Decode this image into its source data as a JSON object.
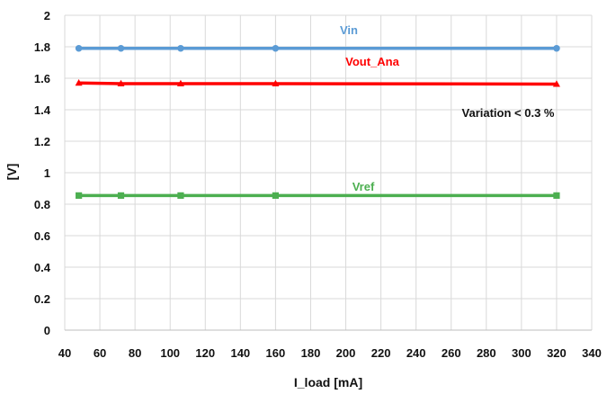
{
  "chart_data": {
    "type": "line",
    "xlabel": "I_load [mA]",
    "ylabel": "[V]",
    "xlim": [
      40,
      340
    ],
    "ylim": [
      0,
      2
    ],
    "x_ticks": [
      "40",
      "60",
      "80",
      "100",
      "120",
      "140",
      "160",
      "180",
      "200",
      "220",
      "240",
      "260",
      "280",
      "300",
      "320",
      "340"
    ],
    "y_ticks": [
      "0",
      "0.2",
      "0.4",
      "0.6",
      "0.8",
      "1",
      "1.2",
      "1.4",
      "1.6",
      "1.8",
      "2"
    ],
    "grid": true,
    "series": [
      {
        "name": "Vin",
        "color": "#5b9bd5",
        "marker": "circle",
        "points": [
          {
            "x": 48,
            "y": 1.79
          },
          {
            "x": 72,
            "y": 1.79
          },
          {
            "x": 106,
            "y": 1.79
          },
          {
            "x": 160,
            "y": 1.79
          },
          {
            "x": 320,
            "y": 1.79
          }
        ]
      },
      {
        "name": "Vout_Ana",
        "color": "#ff0000",
        "marker": "triangle",
        "points": [
          {
            "x": 48,
            "y": 1.57
          },
          {
            "x": 72,
            "y": 1.566
          },
          {
            "x": 106,
            "y": 1.566
          },
          {
            "x": 160,
            "y": 1.566
          },
          {
            "x": 320,
            "y": 1.563
          }
        ]
      },
      {
        "name": "Vref",
        "color": "#4caf50",
        "marker": "square",
        "points": [
          {
            "x": 48,
            "y": 0.855
          },
          {
            "x": 72,
            "y": 0.855
          },
          {
            "x": 106,
            "y": 0.855
          },
          {
            "x": 160,
            "y": 0.855
          },
          {
            "x": 320,
            "y": 0.855
          }
        ]
      }
    ],
    "annotations": {
      "vin_label": "Vin",
      "vout_label": "Vout_Ana",
      "vref_label": "Vref",
      "variation_note": "Variation < 0.3 %"
    },
    "colors": {
      "vin": "#5b9bd5",
      "vout": "#ff0000",
      "vref": "#4caf50",
      "annotation_text": "#111111",
      "grid": "#d9d9d9"
    }
  }
}
